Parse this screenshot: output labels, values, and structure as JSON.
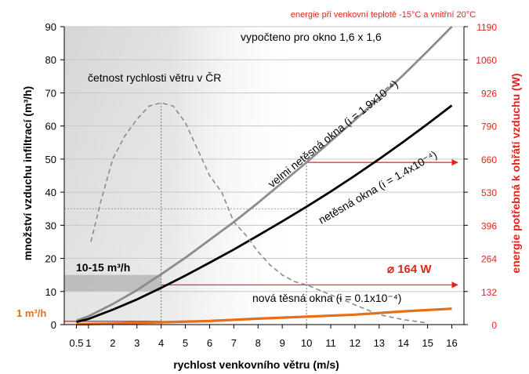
{
  "chart_data": {
    "type": "line",
    "subtitle_top_right": "energie při venkovní  teplotě -15°C a vnitřní 20°C",
    "note_window": "vypočteno pro okno 1,6 x 1,6",
    "xlabel": "rychlost venkovního větru (m/s)",
    "ylabel_left": "množství vzduchu infiltrací (m³/h)",
    "ylabel_right": "energie potřebná k ohřátí vzduchu (W)",
    "x_ticks": [
      "0.5",
      "1",
      "2",
      "3",
      "4",
      "5",
      "6",
      "7",
      "8",
      "9",
      "10",
      "11",
      "12",
      "13",
      "14",
      "15",
      "16"
    ],
    "y_left_ticks": [
      "0",
      "10",
      "20",
      "30",
      "40",
      "50",
      "60",
      "70",
      "80",
      "90"
    ],
    "y_right_ticks": [
      "0",
      "132",
      "264",
      "396",
      "530",
      "660",
      "790",
      "926",
      "1060",
      "1190"
    ],
    "xlim": [
      0,
      16.5
    ],
    "ylim": [
      0,
      90
    ],
    "series": [
      {
        "name": "velmi netěsná okna (i = 1.9x10⁻⁴)",
        "color": "#8c8c8c",
        "x": [
          0.5,
          1,
          2,
          3,
          4,
          5,
          6,
          7,
          8,
          9,
          10,
          11,
          12,
          13,
          14,
          15,
          16
        ],
        "y": [
          1.2,
          2.5,
          6.2,
          10.4,
          15.2,
          20.2,
          25.6,
          31.0,
          36.8,
          42.9,
          49.0,
          55.4,
          61.8,
          68.5,
          75.4,
          82.6,
          90.0
        ]
      },
      {
        "name": "netěsná okna (i = 1.4x10⁻⁴)",
        "color": "#000000",
        "x": [
          0.5,
          1,
          2,
          3,
          4,
          5,
          6,
          7,
          8,
          9,
          10,
          11,
          12,
          13,
          14,
          15,
          16
        ],
        "y": [
          0.8,
          1.7,
          4.5,
          7.6,
          11.1,
          14.8,
          18.7,
          22.7,
          26.9,
          31.2,
          35.6,
          40.2,
          45.0,
          50.0,
          55.2,
          60.6,
          66.2
        ]
      },
      {
        "name": "nová těsná  okna (i = 0.1x10⁻⁴)",
        "color": "#e56f1a",
        "x": [
          0.5,
          2,
          4,
          6,
          8,
          10,
          12,
          14,
          16
        ],
        "y": [
          0.1,
          0.3,
          0.7,
          1.1,
          1.8,
          2.4,
          3.0,
          4.0,
          4.8
        ]
      },
      {
        "name": "četnost rychlosti větru v ČR",
        "color": "#8c8c8c",
        "dashed": true,
        "x": [
          1.1,
          1.5,
          2,
          2.5,
          3,
          3.5,
          4,
          4.5,
          5,
          5.5,
          6,
          6.5,
          7,
          7.5,
          8,
          8.5,
          9,
          9.5,
          10,
          11,
          12,
          13,
          14,
          15
        ],
        "y": [
          25,
          37,
          50,
          57,
          62,
          66,
          67,
          66,
          61,
          53,
          45,
          40,
          31,
          27,
          22,
          18,
          15,
          13,
          12,
          9,
          6,
          3,
          1.5,
          0.5
        ]
      }
    ],
    "annotations": {
      "frequency_label": "četnost rychlosti větru v ČR",
      "band_label": "10-15 m³/h",
      "band_range": [
        10,
        15
      ],
      "energy_label": "⌀ 164 W",
      "one_m3_label": "1 m³/h",
      "one_m3_value": 1,
      "marker_x1": 4,
      "marker_y1": 11.1,
      "marker_x2": 10,
      "marker_y2": 49
    }
  }
}
